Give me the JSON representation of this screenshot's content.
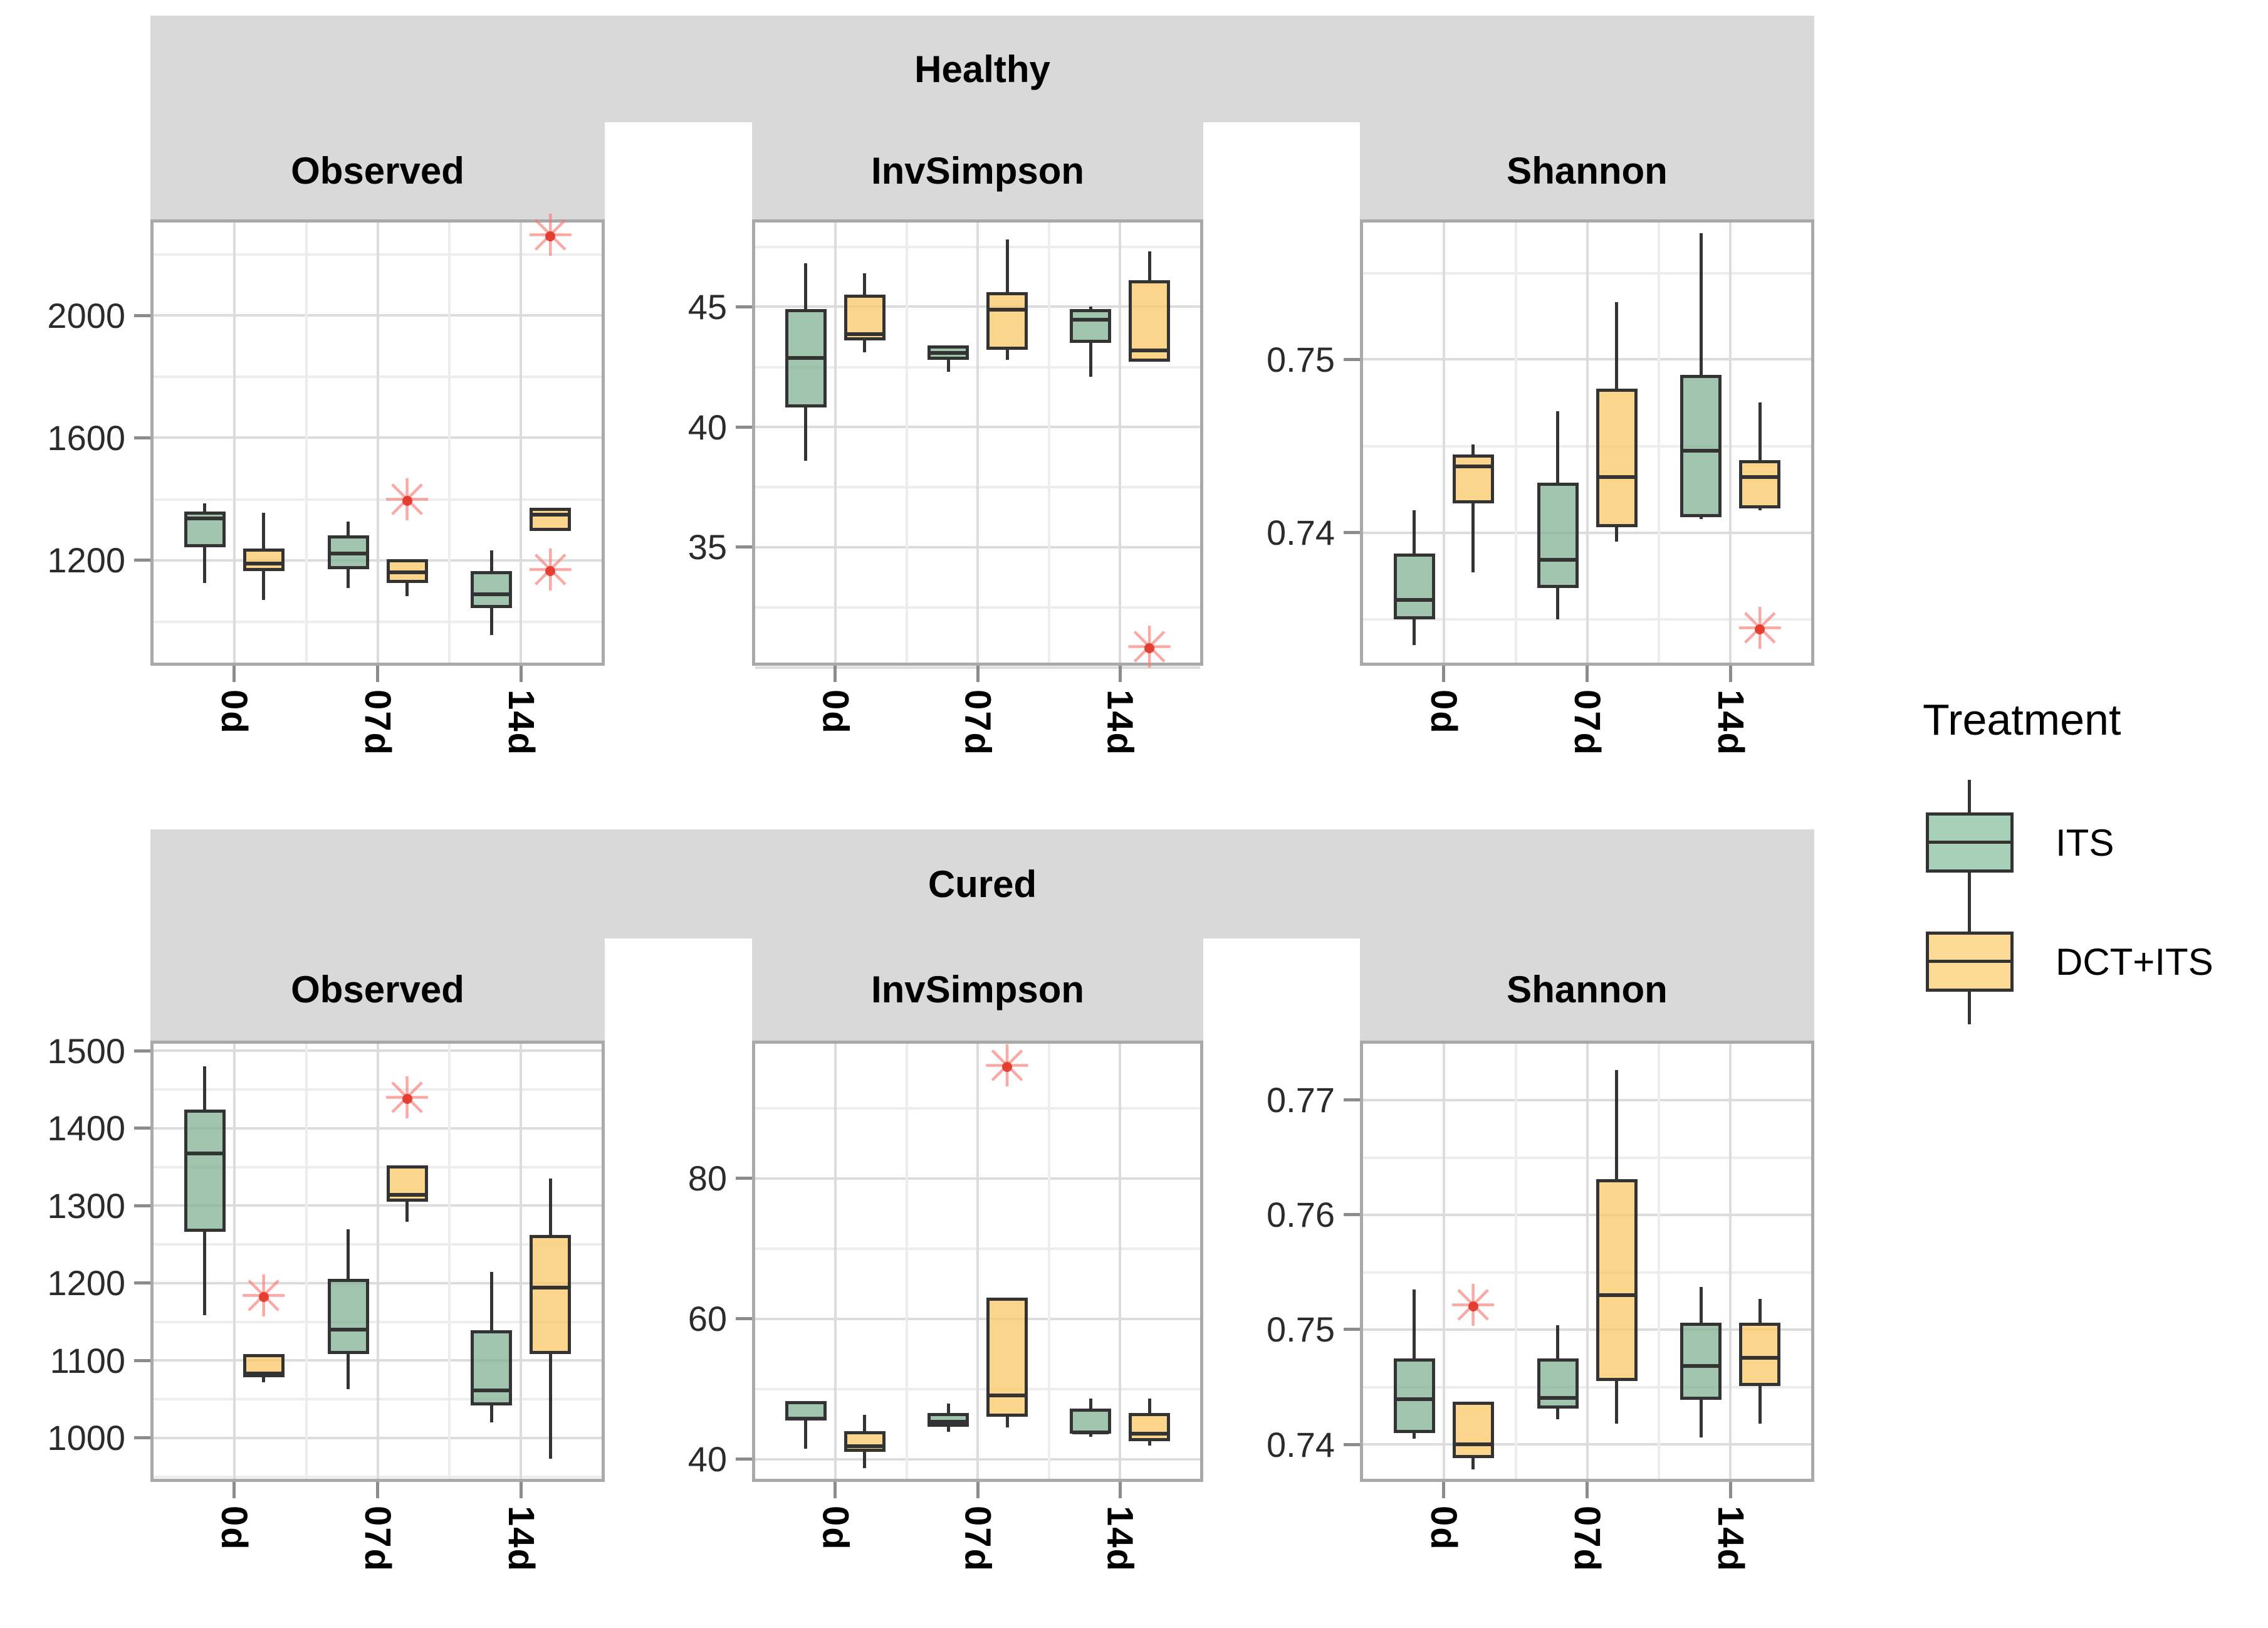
{
  "figure": {
    "type": "faceted-boxplot",
    "description": "Alpha diversity boxplots by treatment and day, faceted by health status (rows) and diversity metric (columns)"
  },
  "legend": {
    "title": "Treatment",
    "items": [
      {
        "label": "ITS",
        "fill": "#A8CFB7"
      },
      {
        "label": "DCT+ITS",
        "fill": "#FBDB96"
      }
    ]
  },
  "colors": {
    "its_fill": "#A8CFB7",
    "dct_its_fill": "#FBDB96",
    "box_stroke": "#333333",
    "strip_bg": "#D9D9D9",
    "panel_border": "#A9A9A9",
    "grid_major": "#DCDCDC",
    "grid_minor": "#EDEDED",
    "outlier_red": "#F8766D"
  },
  "chart_data": {
    "type": "boxplot-facets",
    "categories": [
      "0d",
      "07d",
      "14d"
    ],
    "treatments": [
      "ITS",
      "DCT+ITS"
    ],
    "legend_position": "right",
    "grid": true,
    "x_label_rotation": 90,
    "rows": [
      {
        "facet_label": "Healthy",
        "panels": [
          {
            "metric": "Observed",
            "ylim": [
              866,
              2303
            ],
            "yticks": [
              1200,
              1600,
              2000
            ],
            "ytick_labels": [
              "1200",
              "1600",
              "2000"
            ],
            "yminor": [
              1000,
              1400,
              1800,
              2200
            ],
            "groups": [
              {
                "label": "0d",
                "boxes": [
                  {
                    "treatment": "ITS",
                    "low": 1126,
                    "q1": 1243,
                    "med": 1348,
                    "q3": 1360,
                    "high": 1385,
                    "outliers": []
                  },
                  {
                    "treatment": "DCT+ITS",
                    "low": 1071,
                    "q1": 1165,
                    "med": 1200,
                    "q3": 1239,
                    "high": 1355,
                    "outliers": []
                  }
                ]
              },
              {
                "label": "07d",
                "boxes": [
                  {
                    "treatment": "ITS",
                    "low": 1110,
                    "q1": 1172,
                    "med": 1233,
                    "q3": 1282,
                    "high": 1327,
                    "outliers": []
                  },
                  {
                    "treatment": "DCT+ITS",
                    "low": 1083,
                    "q1": 1126,
                    "med": 1172,
                    "q3": 1204,
                    "high": 1204,
                    "outliers": [
                      1394
                    ]
                  }
                ]
              },
              {
                "label": "14d",
                "boxes": [
                  {
                    "treatment": "ITS",
                    "low": 956,
                    "q1": 1044,
                    "med": 1099,
                    "q3": 1165,
                    "high": 1233,
                    "outliers": []
                  },
                  {
                    "treatment": "DCT+ITS",
                    "low": 1295,
                    "q1": 1295,
                    "med": 1360,
                    "q3": 1372,
                    "high": 1372,
                    "outliers": [
                      2258,
                      1165
                    ]
                  }
                ]
              }
            ]
          },
          {
            "metric": "InvSimpson",
            "ylim": [
              30.2,
              48.5
            ],
            "yticks": [
              30,
              35,
              40,
              45
            ],
            "ytick_labels": [
              "30",
              "35",
              "40",
              "45"
            ],
            "yminor": [
              32.5,
              37.5,
              42.5,
              47.5
            ],
            "groups": [
              {
                "label": "0d",
                "boxes": [
                  {
                    "treatment": "ITS",
                    "low": 38.6,
                    "q1": 40.8,
                    "med": 43.0,
                    "q3": 44.9,
                    "high": 46.8,
                    "outliers": []
                  },
                  {
                    "treatment": "DCT+ITS",
                    "low": 43.1,
                    "q1": 43.6,
                    "med": 44.0,
                    "q3": 45.5,
                    "high": 46.4,
                    "outliers": []
                  }
                ]
              },
              {
                "label": "07d",
                "boxes": [
                  {
                    "treatment": "ITS",
                    "low": 42.3,
                    "q1": 42.8,
                    "med": 43.2,
                    "q3": 43.4,
                    "high": 43.4,
                    "outliers": []
                  },
                  {
                    "treatment": "DCT+ITS",
                    "low": 42.8,
                    "q1": 43.2,
                    "med": 45.0,
                    "q3": 45.6,
                    "high": 47.8,
                    "outliers": []
                  }
                ]
              },
              {
                "label": "14d",
                "boxes": [
                  {
                    "treatment": "ITS",
                    "low": 42.1,
                    "q1": 43.5,
                    "med": 44.6,
                    "q3": 44.9,
                    "high": 45.0,
                    "outliers": []
                  },
                  {
                    "treatment": "DCT+ITS",
                    "low": 42.7,
                    "q1": 42.7,
                    "med": 43.3,
                    "q3": 46.1,
                    "high": 47.3,
                    "outliers": [
                      30.8
                    ]
                  }
                ]
              }
            ]
          },
          {
            "metric": "Shannon",
            "ylim": [
              0.7325,
              0.7579
            ],
            "yticks": [
              0.74,
              0.75
            ],
            "ytick_labels": [
              "0.74",
              "0.75"
            ],
            "yminor": [
              0.735,
              0.745,
              0.755
            ],
            "groups": [
              {
                "label": "0d",
                "boxes": [
                  {
                    "treatment": "ITS",
                    "low": 0.7335,
                    "q1": 0.735,
                    "med": 0.7363,
                    "q3": 0.7388,
                    "high": 0.7413,
                    "outliers": []
                  },
                  {
                    "treatment": "DCT+ITS",
                    "low": 0.7377,
                    "q1": 0.7417,
                    "med": 0.744,
                    "q3": 0.7445,
                    "high": 0.7451,
                    "outliers": []
                  }
                ]
              },
              {
                "label": "07d",
                "boxes": [
                  {
                    "treatment": "ITS",
                    "low": 0.735,
                    "q1": 0.7368,
                    "med": 0.7386,
                    "q3": 0.7429,
                    "high": 0.747,
                    "outliers": []
                  },
                  {
                    "treatment": "DCT+ITS",
                    "low": 0.7395,
                    "q1": 0.7403,
                    "med": 0.7434,
                    "q3": 0.7483,
                    "high": 0.7533,
                    "outliers": []
                  }
                ]
              },
              {
                "label": "14d",
                "boxes": [
                  {
                    "treatment": "ITS",
                    "low": 0.7408,
                    "q1": 0.7409,
                    "med": 0.7449,
                    "q3": 0.7491,
                    "high": 0.7573,
                    "outliers": []
                  },
                  {
                    "treatment": "DCT+ITS",
                    "low": 0.7413,
                    "q1": 0.7414,
                    "med": 0.7434,
                    "q3": 0.7442,
                    "high": 0.7475,
                    "outliers": [
                      0.7344
                    ]
                  }
                ]
              }
            ]
          }
        ]
      },
      {
        "facet_label": "Cured",
        "panels": [
          {
            "metric": "Observed",
            "ylim": [
              947,
              1509
            ],
            "yticks": [
              1000,
              1100,
              1200,
              1300,
              1400,
              1500
            ],
            "ytick_labels": [
              "1000",
              "1100",
              "1200",
              "1300",
              "1400",
              "1500"
            ],
            "yminor": [
              950,
              1050,
              1150,
              1250,
              1350,
              1450
            ],
            "groups": [
              {
                "label": "0d",
                "boxes": [
                  {
                    "treatment": "ITS",
                    "low": 1158,
                    "q1": 1266,
                    "med": 1371,
                    "q3": 1424,
                    "high": 1480,
                    "outliers": []
                  },
                  {
                    "treatment": "DCT+ITS",
                    "low": 1072,
                    "q1": 1078,
                    "med": 1087,
                    "q3": 1108,
                    "high": 1108,
                    "outliers": [
                      1182
                    ]
                  }
                ]
              },
              {
                "label": "07d",
                "boxes": [
                  {
                    "treatment": "ITS",
                    "low": 1063,
                    "q1": 1108,
                    "med": 1144,
                    "q3": 1205,
                    "high": 1269,
                    "outliers": []
                  },
                  {
                    "treatment": "DCT+ITS",
                    "low": 1279,
                    "q1": 1305,
                    "med": 1318,
                    "q3": 1352,
                    "high": 1352,
                    "outliers": [
                      1438
                    ]
                  }
                ]
              },
              {
                "label": "14d",
                "boxes": [
                  {
                    "treatment": "ITS",
                    "low": 1020,
                    "q1": 1042,
                    "med": 1065,
                    "q3": 1139,
                    "high": 1214,
                    "outliers": []
                  },
                  {
                    "treatment": "DCT+ITS",
                    "low": 973,
                    "q1": 1108,
                    "med": 1198,
                    "q3": 1262,
                    "high": 1335,
                    "outliers": []
                  }
                ]
              }
            ]
          },
          {
            "metric": "InvSimpson",
            "ylim": [
              37.2,
              99.2
            ],
            "yticks": [
              40,
              60,
              80
            ],
            "ytick_labels": [
              "40",
              "60",
              "80"
            ],
            "yminor": [
              50,
              70,
              90
            ],
            "groups": [
              {
                "label": "0d",
                "boxes": [
                  {
                    "treatment": "ITS",
                    "low": 41.5,
                    "q1": 45.5,
                    "med": 46.2,
                    "q3": 48.3,
                    "high": 48.3,
                    "outliers": []
                  },
                  {
                    "treatment": "DCT+ITS",
                    "low": 38.7,
                    "q1": 41.0,
                    "med": 42.3,
                    "q3": 44.0,
                    "high": 46.3,
                    "outliers": []
                  }
                ]
              },
              {
                "label": "07d",
                "boxes": [
                  {
                    "treatment": "ITS",
                    "low": 43.9,
                    "q1": 44.6,
                    "med": 45.8,
                    "q3": 46.6,
                    "high": 47.9,
                    "outliers": []
                  },
                  {
                    "treatment": "DCT+ITS",
                    "low": 44.5,
                    "q1": 46.0,
                    "med": 49.5,
                    "q3": 63.0,
                    "high": 63.0,
                    "outliers": [
                      95.9
                    ]
                  }
                ]
              },
              {
                "label": "14d",
                "boxes": [
                  {
                    "treatment": "ITS",
                    "low": 43.2,
                    "q1": 43.6,
                    "med": 44.3,
                    "q3": 47.2,
                    "high": 48.6,
                    "outliers": []
                  },
                  {
                    "treatment": "DCT+ITS",
                    "low": 41.9,
                    "q1": 42.6,
                    "med": 44.1,
                    "q3": 46.6,
                    "high": 48.6,
                    "outliers": []
                  }
                ]
              }
            ]
          },
          {
            "metric": "Shannon",
            "ylim": [
              0.737,
              0.7749
            ],
            "yticks": [
              0.74,
              0.75,
              0.76,
              0.77
            ],
            "ytick_labels": [
              "0.74",
              "0.75",
              "0.76",
              "0.77"
            ],
            "yminor": [
              0.745,
              0.755,
              0.765
            ],
            "groups": [
              {
                "label": "0d",
                "boxes": [
                  {
                    "treatment": "ITS",
                    "low": 0.7405,
                    "q1": 0.741,
                    "med": 0.7442,
                    "q3": 0.7475,
                    "high": 0.7535,
                    "outliers": []
                  },
                  {
                    "treatment": "DCT+ITS",
                    "low": 0.7378,
                    "q1": 0.7388,
                    "med": 0.7403,
                    "q3": 0.7437,
                    "high": 0.7437,
                    "outliers": [
                      0.752
                    ]
                  }
                ]
              },
              {
                "label": "07d",
                "boxes": [
                  {
                    "treatment": "ITS",
                    "low": 0.7422,
                    "q1": 0.7431,
                    "med": 0.7443,
                    "q3": 0.7475,
                    "high": 0.7504,
                    "outliers": []
                  },
                  {
                    "treatment": "DCT+ITS",
                    "low": 0.7418,
                    "q1": 0.7455,
                    "med": 0.7533,
                    "q3": 0.7631,
                    "high": 0.7726,
                    "outliers": []
                  }
                ]
              },
              {
                "label": "14d",
                "boxes": [
                  {
                    "treatment": "ITS",
                    "low": 0.7406,
                    "q1": 0.7439,
                    "med": 0.7471,
                    "q3": 0.7506,
                    "high": 0.7537,
                    "outliers": []
                  },
                  {
                    "treatment": "DCT+ITS",
                    "low": 0.7418,
                    "q1": 0.7451,
                    "med": 0.7478,
                    "q3": 0.7506,
                    "high": 0.7527,
                    "outliers": []
                  }
                ]
              }
            ]
          }
        ]
      }
    ]
  }
}
